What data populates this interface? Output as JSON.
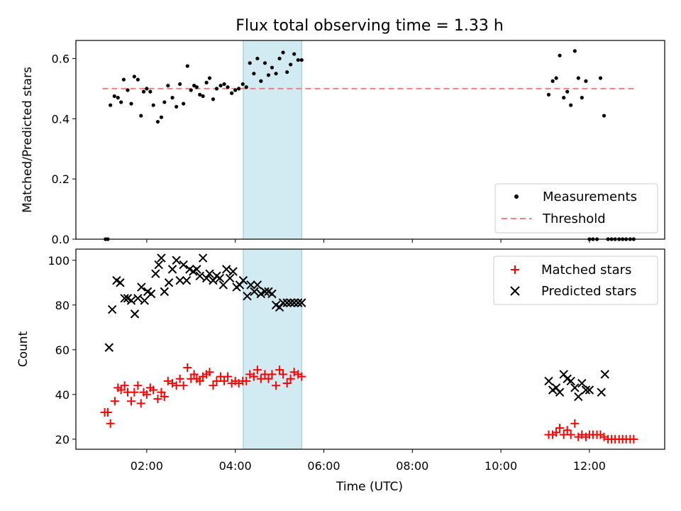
{
  "chart_data": [
    {
      "type": "scatter",
      "title": "Flux total observing time = 1.33 h",
      "xlabel": "",
      "ylabel": "Matched/Predicted stars",
      "ylim": [
        0,
        0.66
      ],
      "yticks": [
        0.0,
        0.2,
        0.4,
        0.6
      ],
      "ytick_labels": [
        "0.0",
        "0.2",
        "0.4",
        "0.6"
      ],
      "highlight_band": {
        "start": 4.18,
        "end": 5.5,
        "color": "#add8e6"
      },
      "legend": {
        "location": "lower right",
        "entries": [
          "Measurements",
          "Threshold"
        ]
      },
      "series": [
        {
          "name": "Measurements",
          "marker": "dot",
          "color": "#000000",
          "x": [
            1.07,
            1.12,
            1.18,
            1.27,
            1.35,
            1.42,
            1.48,
            1.57,
            1.65,
            1.72,
            1.8,
            1.87,
            1.93,
            2.0,
            2.08,
            2.15,
            2.25,
            2.33,
            2.4,
            2.48,
            2.58,
            2.67,
            2.75,
            2.83,
            2.92,
            3.0,
            3.07,
            3.13,
            3.2,
            3.27,
            3.35,
            3.42,
            3.5,
            3.58,
            3.67,
            3.75,
            3.83,
            3.92,
            4.0,
            4.08,
            4.17,
            4.25,
            4.33,
            4.42,
            4.5,
            4.58,
            4.67,
            4.75,
            4.83,
            4.92,
            5.0,
            5.08,
            5.17,
            5.25,
            5.33,
            5.42,
            5.5,
            11.08,
            11.17,
            11.25,
            11.33,
            11.42,
            11.5,
            11.58,
            11.67,
            11.75,
            11.83,
            11.92,
            12.0,
            12.08,
            12.17,
            12.25,
            12.33,
            12.42,
            12.5,
            12.58,
            12.67,
            12.75,
            12.83,
            12.92,
            13.0
          ],
          "y": [
            0.0,
            0.0,
            0.445,
            0.475,
            0.47,
            0.455,
            0.53,
            0.495,
            0.45,
            0.54,
            0.53,
            0.41,
            0.49,
            0.5,
            0.49,
            0.445,
            0.39,
            0.405,
            0.455,
            0.51,
            0.47,
            0.44,
            0.515,
            0.45,
            0.575,
            0.495,
            0.51,
            0.505,
            0.48,
            0.475,
            0.52,
            0.535,
            0.465,
            0.5,
            0.51,
            0.515,
            0.505,
            0.485,
            0.495,
            0.5,
            0.515,
            0.505,
            0.585,
            0.55,
            0.6,
            0.525,
            0.585,
            0.545,
            0.57,
            0.55,
            0.6,
            0.62,
            0.555,
            0.58,
            0.615,
            0.595,
            0.595,
            0.48,
            0.525,
            0.535,
            0.61,
            0.47,
            0.49,
            0.445,
            0.625,
            0.535,
            0.47,
            0.525,
            0.0,
            0.0,
            0.0,
            0.535,
            0.41,
            0.0,
            0.0,
            0.0,
            0.0,
            0.0,
            0.0,
            0.0,
            0.0
          ]
        },
        {
          "name": "Threshold",
          "style": "dashed",
          "color": "#f08080",
          "x": [
            1.0,
            13.0
          ],
          "y": [
            0.5,
            0.5
          ]
        }
      ]
    },
    {
      "type": "scatter",
      "xlabel": "Time (UTC)",
      "ylabel": "Count",
      "xlim": [
        0.4,
        13.7
      ],
      "ylim": [
        15.5,
        105
      ],
      "xticks": [
        2,
        4,
        6,
        8,
        10,
        12
      ],
      "xtick_labels": [
        "02:00",
        "04:00",
        "06:00",
        "08:00",
        "10:00",
        "12:00"
      ],
      "yticks": [
        20,
        40,
        60,
        80,
        100
      ],
      "ytick_labels": [
        "20",
        "40",
        "60",
        "80",
        "100"
      ],
      "highlight_band": {
        "start": 4.18,
        "end": 5.5,
        "color": "#add8e6"
      },
      "legend": {
        "location": "upper right",
        "entries": [
          "Matched stars",
          "Predicted stars"
        ]
      },
      "series": [
        {
          "name": "Matched stars",
          "marker": "plus",
          "color": "#ff0000",
          "x": [
            1.05,
            1.12,
            1.18,
            1.28,
            1.35,
            1.42,
            1.5,
            1.57,
            1.65,
            1.72,
            1.8,
            1.87,
            1.93,
            2.0,
            2.08,
            2.15,
            2.25,
            2.33,
            2.4,
            2.48,
            2.58,
            2.67,
            2.75,
            2.83,
            2.92,
            3.0,
            3.07,
            3.13,
            3.2,
            3.27,
            3.35,
            3.42,
            3.5,
            3.58,
            3.67,
            3.75,
            3.83,
            3.92,
            4.0,
            4.08,
            4.17,
            4.25,
            4.33,
            4.42,
            4.5,
            4.58,
            4.67,
            4.75,
            4.83,
            4.92,
            5.0,
            5.08,
            5.17,
            5.25,
            5.33,
            5.42,
            5.5,
            11.08,
            11.17,
            11.25,
            11.33,
            11.42,
            11.5,
            11.58,
            11.67,
            11.75,
            11.83,
            11.92,
            12.0,
            12.08,
            12.17,
            12.25,
            12.33,
            12.42,
            12.5,
            12.58,
            12.67,
            12.75,
            12.83,
            12.92,
            13.0
          ],
          "y": [
            32,
            32,
            27,
            37,
            43,
            42,
            44,
            41,
            37,
            41,
            44,
            36,
            41,
            40,
            43,
            42,
            38,
            41,
            39,
            46,
            45,
            44,
            47,
            44,
            52,
            47,
            49,
            47,
            46,
            48,
            49,
            50,
            44,
            46,
            48,
            46,
            48,
            45,
            46,
            45,
            46,
            46,
            49,
            48,
            51,
            47,
            49,
            47,
            49,
            44,
            51,
            49,
            45,
            47,
            50,
            49,
            48,
            22,
            22,
            23,
            25,
            22,
            24,
            22,
            27,
            21,
            22,
            21,
            22,
            22,
            22,
            22,
            21,
            20,
            20,
            20,
            20,
            20,
            20,
            20,
            20
          ]
        },
        {
          "name": "Predicted stars",
          "marker": "x",
          "color": "#000000",
          "x": [
            1.15,
            1.22,
            1.32,
            1.4,
            1.5,
            1.57,
            1.65,
            1.73,
            1.8,
            1.88,
            1.95,
            2.02,
            2.1,
            2.2,
            2.27,
            2.33,
            2.4,
            2.5,
            2.58,
            2.67,
            2.75,
            2.83,
            2.9,
            2.97,
            3.05,
            3.13,
            3.2,
            3.27,
            3.35,
            3.42,
            3.5,
            3.58,
            3.65,
            3.73,
            3.8,
            3.88,
            3.95,
            4.03,
            4.1,
            4.18,
            4.27,
            4.35,
            4.43,
            4.5,
            4.58,
            4.67,
            4.75,
            4.83,
            4.92,
            5.0,
            5.08,
            5.17,
            5.25,
            5.33,
            5.42,
            5.5,
            11.08,
            11.17,
            11.25,
            11.33,
            11.42,
            11.5,
            11.58,
            11.67,
            11.75,
            11.83,
            11.92,
            12.0,
            12.27,
            12.35
          ],
          "y": [
            61,
            78,
            91,
            90,
            83,
            83,
            82,
            76,
            83,
            88,
            82,
            86,
            85,
            94,
            98,
            101,
            86,
            90,
            96,
            100,
            91,
            98,
            91,
            96,
            95,
            96,
            93,
            101,
            92,
            94,
            91,
            93,
            92,
            89,
            96,
            92,
            95,
            88,
            89,
            91,
            84,
            89,
            86,
            89,
            85,
            86,
            86,
            85,
            80,
            79,
            81,
            81,
            81,
            81,
            81,
            81,
            46,
            42,
            43,
            41,
            49,
            47,
            46,
            43,
            39,
            45,
            42,
            42,
            41,
            49
          ]
        }
      ]
    }
  ]
}
